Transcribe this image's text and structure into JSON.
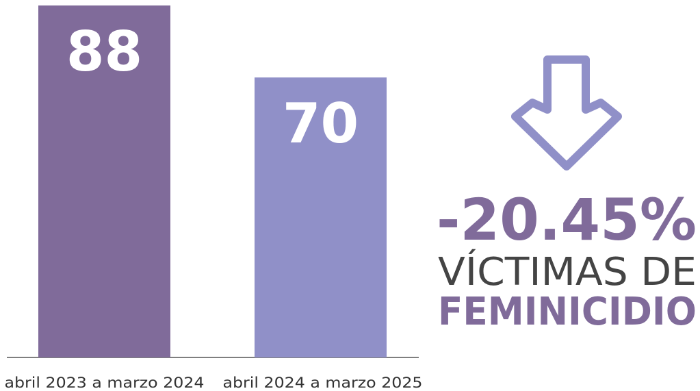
{
  "chart_data": {
    "type": "bar",
    "categories": [
      "abril 2023 a marzo 2024",
      "abril 2024 a marzo 2025"
    ],
    "values": [
      88,
      70
    ],
    "colors": [
      "#806b9a",
      "#9090c8"
    ],
    "ylim": [
      0,
      88
    ],
    "annotation": {
      "value": -20.45,
      "label": "-20.45%"
    },
    "annotation_text": [
      "VÍCTIMAS DE",
      "FEMINICIDIO"
    ]
  }
}
